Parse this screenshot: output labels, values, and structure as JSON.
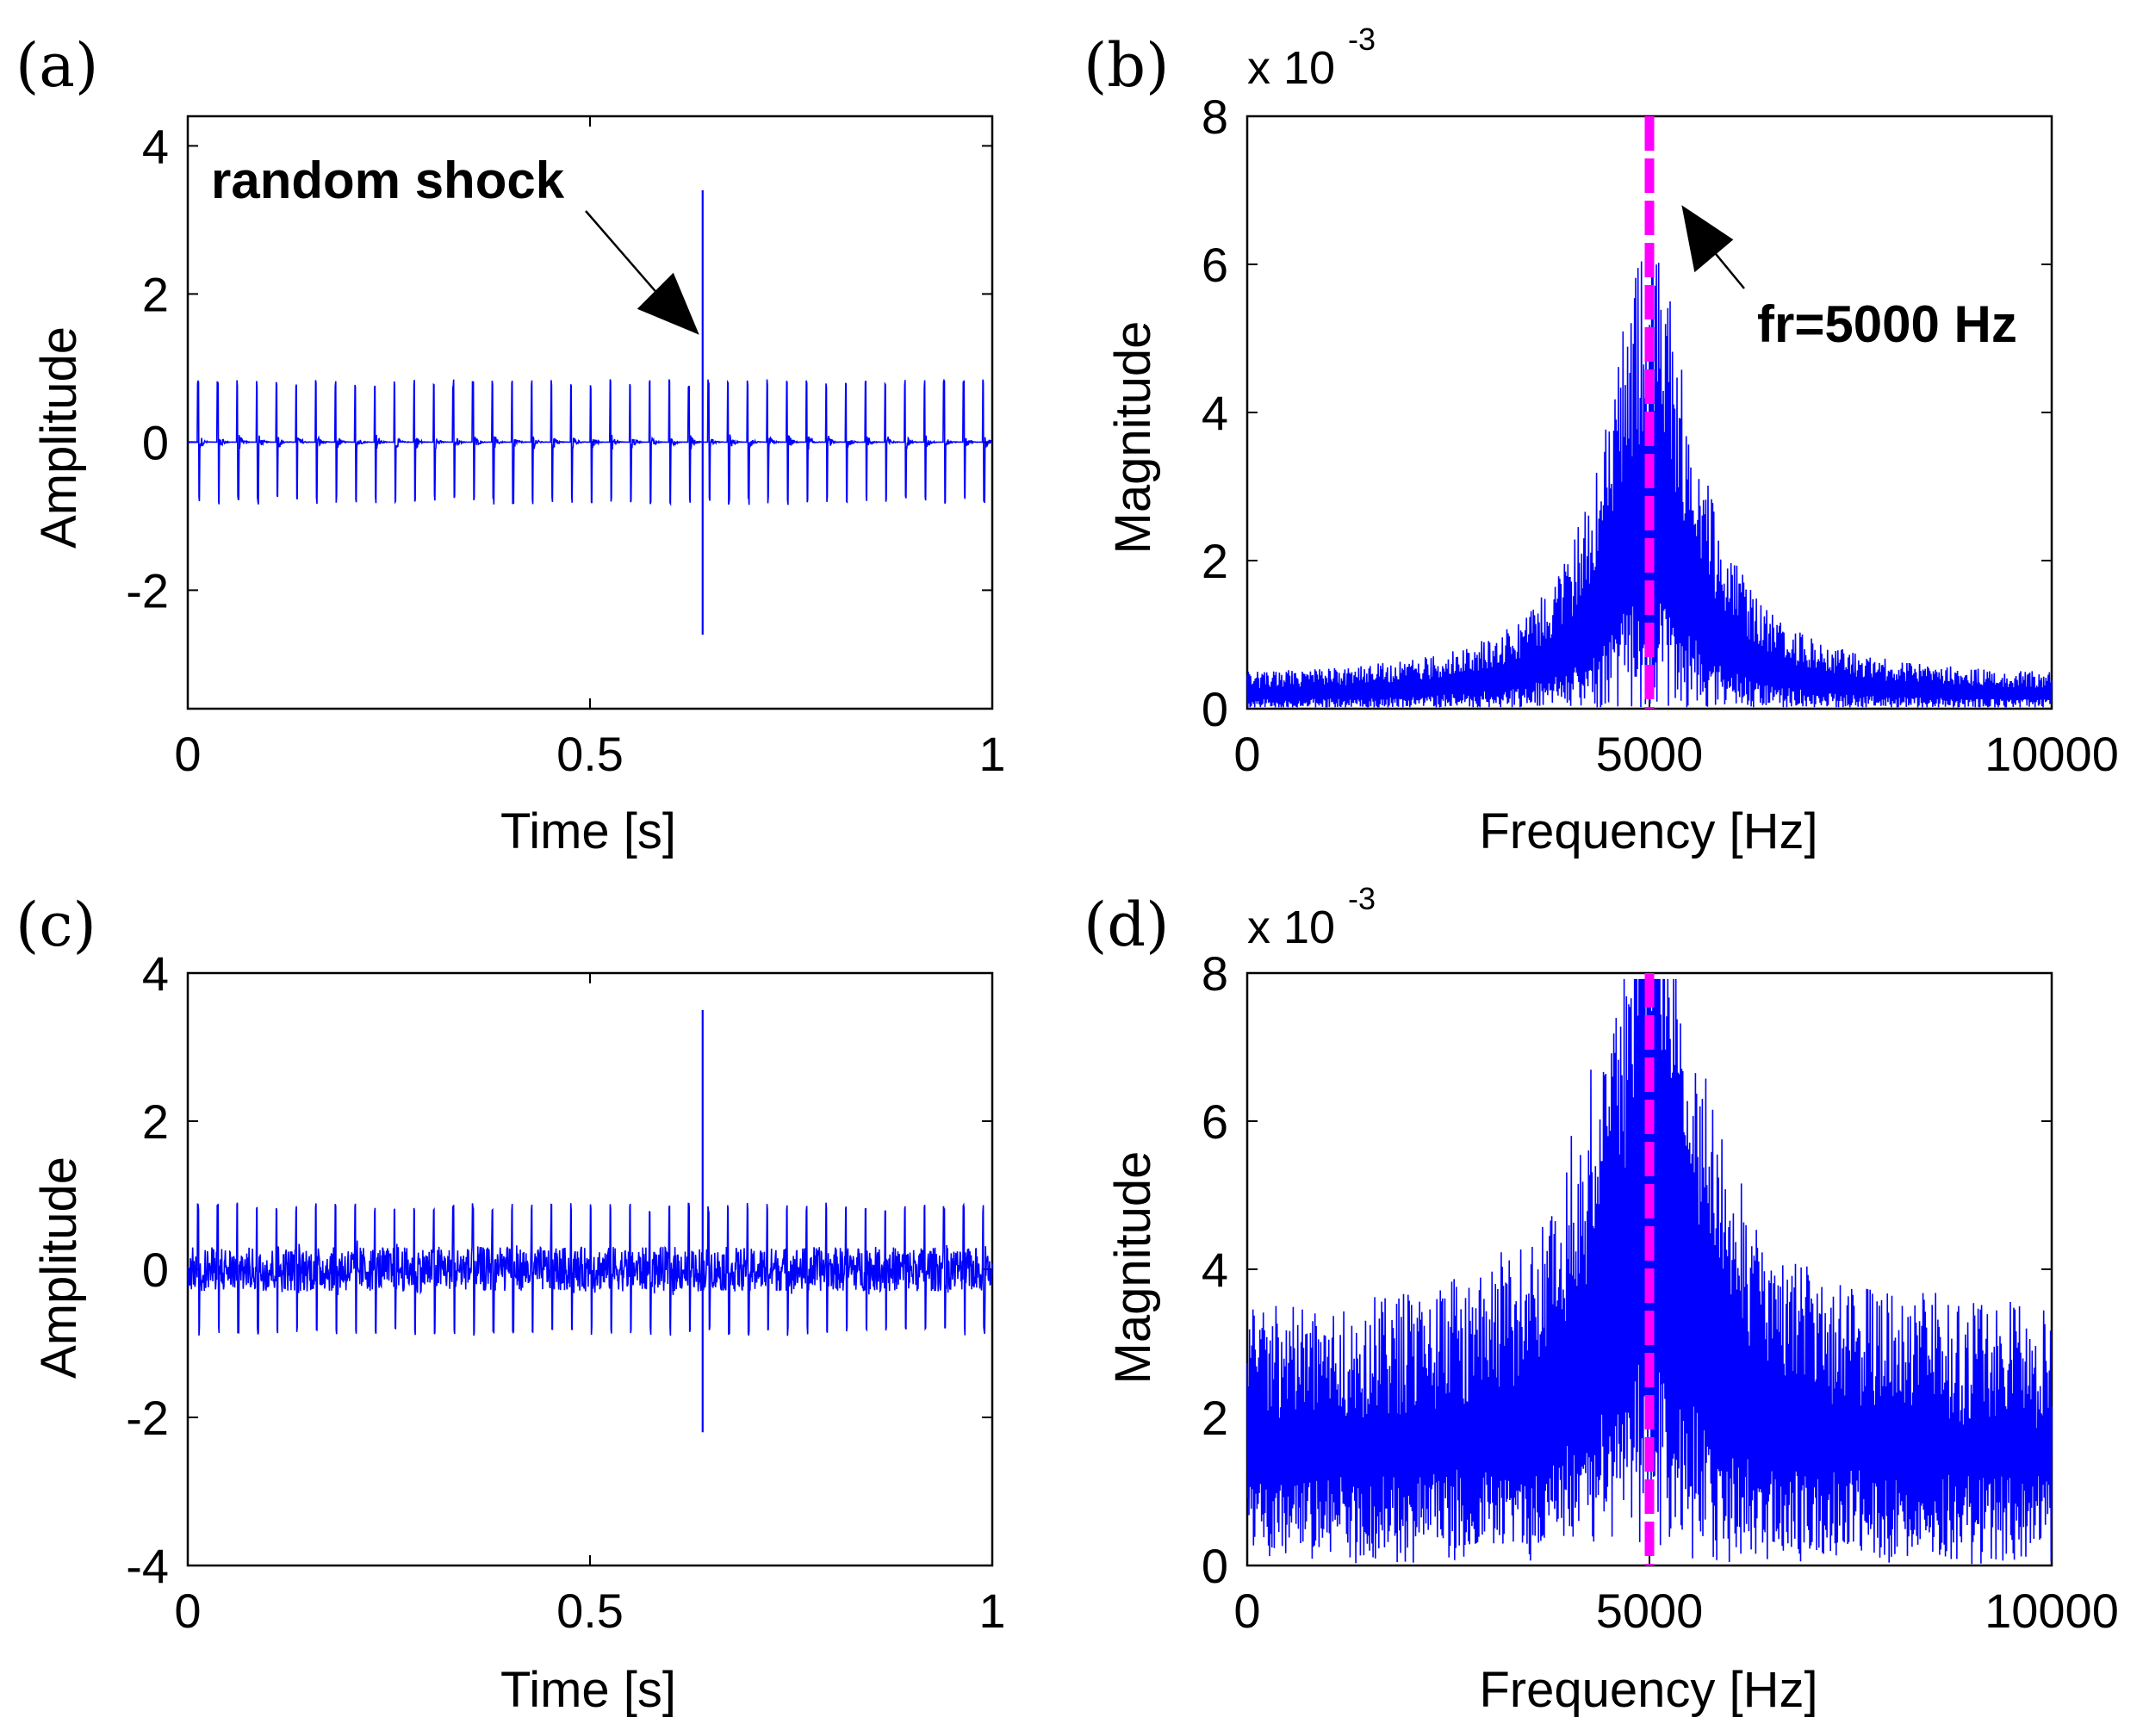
{
  "figure": {
    "panels": [
      {
        "id": "a",
        "label": "(a)",
        "xlabel": "Time [s]",
        "ylabel": "Amplitude",
        "exponent": "",
        "annotation": "random shock"
      },
      {
        "id": "b",
        "label": "(b)",
        "xlabel": "Frequency [Hz]",
        "ylabel": "Magnitude",
        "exponent": "x 10",
        "exponent_power": "-3",
        "annotation": "fr=5000 Hz"
      },
      {
        "id": "c",
        "label": "(c)",
        "xlabel": "Time [s]",
        "ylabel": "Amplitude",
        "exponent": "",
        "annotation": ""
      },
      {
        "id": "d",
        "label": "(d)",
        "xlabel": "Frequency [Hz]",
        "ylabel": "Magnitude",
        "exponent": "x 10",
        "exponent_power": "-3",
        "annotation": ""
      }
    ]
  },
  "colors": {
    "signal": "#0000ff",
    "marker": "#ff00ff",
    "axes": "#000000"
  },
  "chart_data": [
    {
      "id": "a",
      "type": "line",
      "title": "",
      "xlabel": "Time [s]",
      "ylabel": "Amplitude",
      "xlim": [
        0,
        1
      ],
      "ylim": [
        -3.6,
        4.4
      ],
      "xticks": [
        0,
        0.5,
        1
      ],
      "xtick_labels": [
        "0",
        "0.5",
        "1"
      ],
      "yticks": [
        -2,
        0,
        2,
        4
      ],
      "ytick_labels": [
        "-2",
        "0",
        "2",
        "4"
      ],
      "description_of_series": "periodic impulses (~40 Hz), amplitude about +/-0.9, near-zero baseline",
      "impulse_period_s": 0.0244,
      "impulse_amplitude": 0.85,
      "noise_level": 0.0,
      "shock": {
        "t": 0.64,
        "max": 3.4,
        "min": -2.6
      },
      "annotation": {
        "text": "random shock",
        "arrow_to": [
          0.64,
          1.45
        ]
      }
    },
    {
      "id": "b",
      "type": "line",
      "title": "",
      "xlabel": "Frequency [Hz]",
      "ylabel": "Magnitude",
      "xlim": [
        0,
        10000
      ],
      "ylim": [
        0,
        8
      ],
      "xticks": [
        0,
        5000,
        10000
      ],
      "xtick_labels": [
        "0",
        "5000",
        "10000"
      ],
      "yticks": [
        0,
        2,
        4,
        6,
        8
      ],
      "ytick_labels": [
        "0",
        "2",
        "4",
        "6",
        "8"
      ],
      "y_scale_exponent": -3,
      "description_of_series": "spectrum peaked at 5000 Hz, peak about 6.3e-3, floor about 0.4e-3",
      "peak_freq_hz": 5000,
      "peak_magnitude": 6.3,
      "floor_magnitude": 0.4,
      "noise_floor": 0.0,
      "marker_line_x": 5000,
      "annotation": {
        "text": "fr=5000 Hz",
        "arrow_to": [
          5400,
          6.8
        ]
      }
    },
    {
      "id": "c",
      "type": "line",
      "title": "",
      "xlabel": "Time [s]",
      "ylabel": "Amplitude",
      "xlim": [
        0,
        1
      ],
      "ylim": [
        -4,
        4
      ],
      "xticks": [
        0,
        0.5,
        1
      ],
      "xtick_labels": [
        "0",
        "0.5",
        "1"
      ],
      "yticks": [
        -4,
        -2,
        0,
        2,
        4
      ],
      "ytick_labels": [
        "-4",
        "-2",
        "0",
        "2",
        "4"
      ],
      "description_of_series": "periodic impulses plus noise, amplitude about +/-1.1",
      "impulse_period_s": 0.0244,
      "impulse_amplitude": 0.9,
      "noise_level": 0.3,
      "shock": {
        "t": 0.64,
        "max": 3.5,
        "min": -2.2
      }
    },
    {
      "id": "d",
      "type": "line",
      "title": "",
      "xlabel": "Frequency [Hz]",
      "ylabel": "Magnitude",
      "xlim": [
        0,
        10000
      ],
      "ylim": [
        0,
        8
      ],
      "xticks": [
        0,
        5000,
        10000
      ],
      "xtick_labels": [
        "0",
        "5000",
        "10000"
      ],
      "yticks": [
        0,
        2,
        4,
        6,
        8
      ],
      "ytick_labels": [
        "0",
        "2",
        "4",
        "6",
        "8"
      ],
      "y_scale_exponent": -3,
      "description_of_series": "noisy spectrum, peak about 7.7e-3 at 5000 Hz, broadband floor up to about 3.5e-3",
      "peak_freq_hz": 5000,
      "peak_magnitude": 7.7,
      "floor_magnitude": 0.2,
      "noise_floor": 3.3,
      "marker_line_x": 5000
    }
  ]
}
